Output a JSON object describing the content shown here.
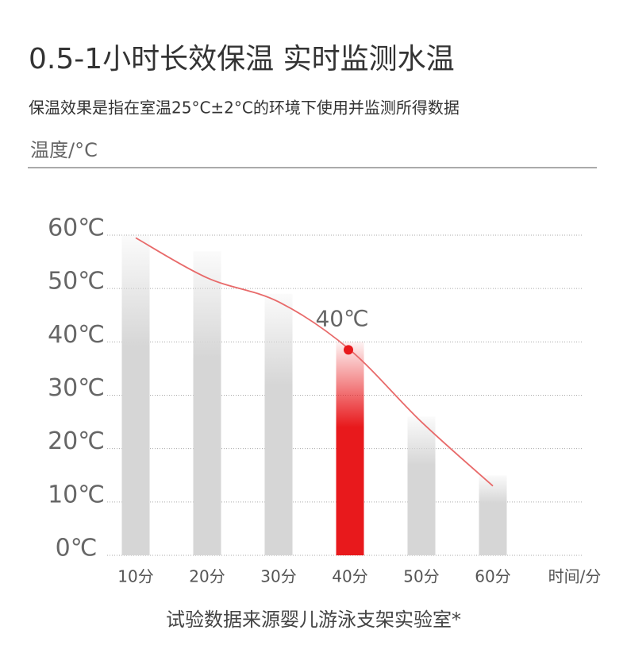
{
  "chart_data": {
    "type": "bar",
    "title": "0.5-1小时长效保温 实时监测水温",
    "subtitle": "保温效果是指在室温25°C±2°C的环境下使用并监测所得数据",
    "y_label": "温度/°C",
    "x_label": "时间/分",
    "footnote": "试验数据来源婴儿游泳支架实验室*",
    "categories": [
      "10分",
      "20分",
      "30分",
      "40分",
      "50分",
      "60分"
    ],
    "values": [
      60,
      57,
      49,
      40,
      26,
      15
    ],
    "color": "#d6d6d6",
    "highlight": 3,
    "highlight_color": "#e8191c",
    "line": {
      "values": [
        59.5,
        52,
        47.5,
        38.5,
        25,
        13
      ],
      "color": "#e86a6a"
    },
    "annotation": {
      "text": "40℃",
      "index": 3,
      "color": "#e8191c"
    },
    "ylim": [
      0,
      60
    ],
    "yticks": [
      {
        "value": 0,
        "label": "0℃"
      },
      {
        "value": 10,
        "label": "10℃"
      },
      {
        "value": 20,
        "label": "20℃"
      },
      {
        "value": 30,
        "label": "30℃"
      },
      {
        "value": 40,
        "label": "40℃"
      },
      {
        "value": 50,
        "label": "50℃"
      },
      {
        "value": 60,
        "label": "60℃"
      }
    ],
    "grid": true
  }
}
